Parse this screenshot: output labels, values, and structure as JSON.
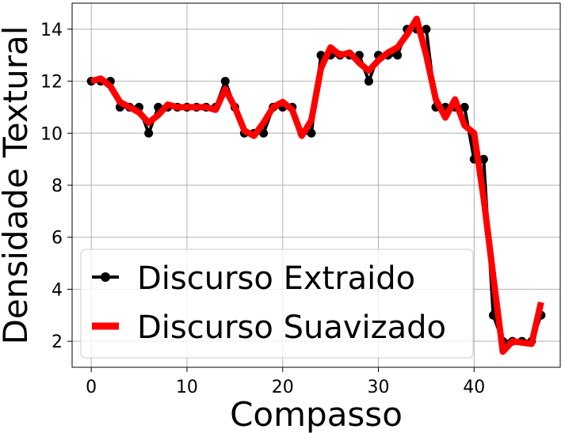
{
  "chart_data": {
    "type": "line",
    "xlabel": "Compasso",
    "ylabel": "Densidade Textural",
    "xlim": [
      -2,
      49
    ],
    "ylim": [
      1,
      15
    ],
    "x_ticks": [
      0,
      10,
      20,
      30,
      40
    ],
    "y_ticks": [
      2,
      4,
      6,
      8,
      10,
      12,
      14
    ],
    "grid": true,
    "legend_position": "lower-left",
    "series": [
      {
        "name": "Discurso Extraido",
        "color": "#000000",
        "marker": "circle",
        "x": [
          0,
          1,
          2,
          3,
          4,
          5,
          6,
          7,
          8,
          9,
          10,
          11,
          12,
          13,
          14,
          15,
          16,
          17,
          18,
          19,
          20,
          21,
          22,
          23,
          24,
          25,
          26,
          27,
          28,
          29,
          30,
          31,
          32,
          33,
          34,
          35,
          36,
          37,
          38,
          39,
          40,
          41,
          42,
          43,
          44,
          45,
          46,
          47
        ],
        "values": [
          12,
          12,
          12,
          11,
          11,
          11,
          10,
          11,
          11,
          11,
          11,
          11,
          11,
          11,
          12,
          11,
          10,
          10,
          10,
          11,
          11,
          11,
          10,
          10,
          13,
          13,
          13,
          13,
          13,
          12,
          13,
          13,
          13,
          14,
          14,
          14,
          11,
          11,
          11,
          11,
          9,
          9,
          3,
          2,
          2,
          2,
          2,
          3
        ]
      },
      {
        "name": "Discurso Suavizado",
        "color": "#ff0000",
        "marker": "none",
        "x": [
          0,
          1,
          2,
          3,
          4,
          5,
          6,
          7,
          8,
          9,
          10,
          11,
          12,
          13,
          14,
          15,
          16,
          17,
          18,
          19,
          20,
          21,
          22,
          23,
          24,
          25,
          26,
          27,
          28,
          29,
          30,
          31,
          32,
          33,
          34,
          35,
          36,
          37,
          38,
          39,
          40,
          41,
          42,
          43,
          44,
          45,
          46,
          47
        ],
        "values": [
          12,
          12.1,
          11.8,
          11.2,
          11.0,
          10.8,
          10.4,
          10.7,
          11.1,
          11.0,
          11.0,
          11.0,
          11.0,
          10.9,
          11.7,
          11.0,
          10.1,
          9.9,
          10.4,
          11.0,
          11.2,
          10.9,
          9.9,
          10.5,
          12.5,
          13.3,
          13.0,
          13.1,
          12.7,
          12.4,
          12.8,
          13.1,
          13.3,
          13.8,
          14.4,
          13.0,
          11.3,
          10.6,
          11.3,
          10.3,
          10.0,
          7.5,
          4.5,
          1.6,
          2.0,
          1.95,
          1.9,
          3.5
        ]
      }
    ]
  }
}
